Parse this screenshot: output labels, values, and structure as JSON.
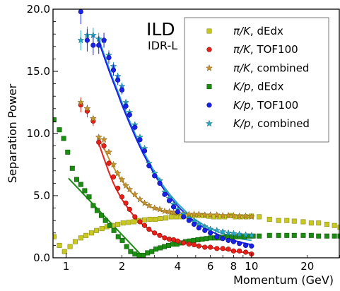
{
  "chart_data": {
    "type": "scatter",
    "title": "ILD",
    "subtitle": "IDR-L",
    "xlabel": "Momentum (GeV)",
    "ylabel": "Separation Power",
    "xscale": "log",
    "xlim": [
      0.85,
      30
    ],
    "ylim": [
      0,
      20
    ],
    "xticks": [
      1,
      2,
      4,
      6,
      8,
      10,
      20
    ],
    "yticks": [
      0,
      5,
      10,
      15,
      20
    ],
    "ytick_labels": [
      "0.0",
      "5.0",
      "10.0",
      "15.0",
      "20.0"
    ],
    "legend_position": "top-right",
    "series": [
      {
        "name": "π/K, dEdx",
        "legend_parts": [
          {
            "t": "π/K",
            "i": true
          },
          {
            "t": ", dEdx",
            "i": false
          }
        ],
        "marker": "square",
        "color": "#c8c81e",
        "edge": "#8a8a10",
        "x": [
          0.86,
          0.92,
          0.98,
          1.05,
          1.12,
          1.2,
          1.28,
          1.37,
          1.46,
          1.56,
          1.66,
          1.78,
          1.9,
          2.03,
          2.17,
          2.32,
          2.48,
          2.65,
          2.83,
          3.02,
          3.23,
          3.45,
          3.69,
          3.94,
          4.21,
          4.5,
          4.81,
          5.14,
          5.49,
          5.87,
          6.27,
          6.7,
          7.16,
          7.65,
          8.17,
          8.73,
          9.33,
          9.97,
          11,
          12.5,
          14,
          15.5,
          17,
          19,
          21,
          23,
          25.5,
          28,
          30
        ],
        "y": [
          1.7,
          1.0,
          0.5,
          0.9,
          1.3,
          1.6,
          1.8,
          2.0,
          2.2,
          2.35,
          2.5,
          2.6,
          2.7,
          2.8,
          2.85,
          2.9,
          3.0,
          3.05,
          3.1,
          3.1,
          3.15,
          3.2,
          3.3,
          3.3,
          3.3,
          3.35,
          3.4,
          3.4,
          3.4,
          3.35,
          3.3,
          3.3,
          3.3,
          3.4,
          3.3,
          3.3,
          3.3,
          3.35,
          3.3,
          3.1,
          3.0,
          3.0,
          2.95,
          2.9,
          2.8,
          2.8,
          2.7,
          2.6,
          2.45
        ]
      },
      {
        "name": "π/K, TOF100",
        "legend_parts": [
          {
            "t": "π/K",
            "i": true
          },
          {
            "t": ", TOF100",
            "i": false
          }
        ],
        "marker": "circle",
        "color": "#e8201a",
        "edge": "#8a1008",
        "x": [
          1.2,
          1.3,
          1.4,
          1.5,
          1.6,
          1.7,
          1.8,
          1.9,
          2.0,
          2.1,
          2.2,
          2.35,
          2.5,
          2.65,
          2.8,
          3.0,
          3.2,
          3.4,
          3.6,
          3.8,
          4.0,
          4.3,
          4.6,
          4.9,
          5.2,
          5.6,
          6.0,
          6.5,
          7.0,
          7.5,
          8.0,
          8.6,
          9.3,
          10.0
        ],
        "y": [
          12.3,
          11.8,
          11.0,
          9.3,
          9.0,
          7.6,
          6.5,
          5.6,
          4.9,
          4.4,
          3.9,
          3.3,
          2.9,
          2.6,
          2.3,
          2.0,
          1.8,
          1.6,
          1.5,
          1.45,
          1.35,
          1.2,
          1.1,
          1.05,
          0.95,
          0.85,
          0.85,
          0.75,
          0.75,
          0.7,
          0.55,
          0.55,
          0.45,
          0.3
        ],
        "yerr": [
          0.6,
          0.5,
          0.4,
          0.35,
          0.3,
          0.25,
          0.2,
          0.2,
          0.15,
          0.15,
          0.15,
          0.1,
          0.1,
          0.1,
          0.1,
          0.1,
          0.1,
          0.1,
          0.1,
          0.1,
          0.1,
          0.1,
          0.1,
          0.1,
          0.1,
          0.1,
          0.1,
          0.1,
          0.1,
          0.1,
          0.1,
          0.1,
          0.1,
          0.1
        ],
        "fit": {
          "x": [
            1.5,
            1.6,
            1.7,
            1.8,
            1.9,
            2.0,
            2.2,
            2.4,
            2.6,
            2.8,
            3.0,
            3.3,
            3.6,
            4.0,
            4.5,
            5.0,
            5.5,
            6.0,
            7.0,
            8.0,
            9.0,
            10.0
          ],
          "y": [
            9.2,
            8.0,
            6.9,
            6.0,
            5.3,
            4.7,
            3.8,
            3.1,
            2.65,
            2.3,
            2.0,
            1.7,
            1.5,
            1.3,
            1.12,
            1.0,
            0.9,
            0.82,
            0.68,
            0.55,
            0.45,
            0.37
          ]
        }
      },
      {
        "name": "π/K, combined",
        "legend_parts": [
          {
            "t": "π/K",
            "i": true
          },
          {
            "t": ", combined",
            "i": false
          }
        ],
        "marker": "star",
        "color": "#c8942e",
        "edge": "#7a5a14",
        "x": [
          1.2,
          1.3,
          1.4,
          1.5,
          1.6,
          1.7,
          1.8,
          1.9,
          2.0,
          2.1,
          2.2,
          2.35,
          2.5,
          2.65,
          2.8,
          3.0,
          3.2,
          3.4,
          3.6,
          3.8,
          4.0,
          4.3,
          4.6,
          4.9,
          5.2,
          5.6,
          6.0,
          6.5,
          7.0,
          7.5,
          8.0,
          8.6,
          9.3,
          10.0
        ],
        "y": [
          12.5,
          12.0,
          11.2,
          9.7,
          9.5,
          8.5,
          7.5,
          6.8,
          6.3,
          5.8,
          5.5,
          5.1,
          4.7,
          4.4,
          4.2,
          4.0,
          3.9,
          3.75,
          3.7,
          3.65,
          3.6,
          3.55,
          3.5,
          3.5,
          3.5,
          3.45,
          3.45,
          3.45,
          3.4,
          3.4,
          3.4,
          3.35,
          3.35,
          3.3
        ],
        "fit": {
          "x": [
            1.5,
            1.6,
            1.7,
            1.8,
            1.9,
            2.0,
            2.2,
            2.4,
            2.6,
            2.8,
            3.0,
            3.3,
            3.6,
            4.0,
            4.5,
            5.0,
            5.5,
            6.0,
            7.0,
            8.0,
            9.0,
            10.0
          ],
          "y": [
            9.6,
            8.8,
            8.0,
            7.3,
            6.7,
            6.2,
            5.4,
            4.85,
            4.45,
            4.15,
            3.95,
            3.75,
            3.6,
            3.5,
            3.42,
            3.38,
            3.35,
            3.33,
            3.3,
            3.28,
            3.26,
            3.25
          ]
        }
      },
      {
        "name": "K/p, dEdx",
        "legend_parts": [
          {
            "t": "K/p",
            "i": true
          },
          {
            "t": ", dEdx",
            "i": false
          }
        ],
        "marker": "square",
        "color": "#1c8c12",
        "edge": "#0e5a08",
        "x": [
          0.86,
          0.92,
          0.97,
          1.02,
          1.08,
          1.14,
          1.2,
          1.26,
          1.33,
          1.4,
          1.47,
          1.55,
          1.63,
          1.72,
          1.81,
          1.91,
          2.01,
          2.12,
          2.23,
          2.35,
          2.48,
          2.61,
          2.75,
          2.9,
          3.05,
          3.22,
          3.39,
          3.57,
          3.76,
          3.96,
          4.17,
          4.4,
          4.63,
          4.88,
          5.14,
          5.42,
          5.71,
          6.02,
          6.34,
          6.68,
          7.04,
          7.42,
          7.82,
          8.24,
          8.68,
          9.15,
          9.64,
          10.2,
          11,
          12.5,
          14,
          15.5,
          17,
          19,
          21,
          23,
          25.5,
          28,
          30
        ],
        "y": [
          11.1,
          10.3,
          9.6,
          8.5,
          7.2,
          6.3,
          5.9,
          5.4,
          4.9,
          4.2,
          3.8,
          3.4,
          3.0,
          2.6,
          2.2,
          1.7,
          1.4,
          0.9,
          0.5,
          0.3,
          0.2,
          0.2,
          0.4,
          0.5,
          0.7,
          0.8,
          0.9,
          1.0,
          1.1,
          1.1,
          1.2,
          1.3,
          1.35,
          1.4,
          1.45,
          1.5,
          1.55,
          1.6,
          1.6,
          1.6,
          1.65,
          1.7,
          1.7,
          1.7,
          1.7,
          1.7,
          1.75,
          1.75,
          1.75,
          1.8,
          1.8,
          1.8,
          1.8,
          1.8,
          1.8,
          1.75,
          1.75,
          1.75,
          1.75
        ],
        "fit": {
          "x": [
            1.03,
            2.55
          ],
          "y": [
            6.4,
            0.2
          ]
        }
      },
      {
        "name": "K/p, TOF100",
        "legend_parts": [
          {
            "t": "K/p",
            "i": true
          },
          {
            "t": ", TOF100",
            "i": false
          }
        ],
        "marker": "circle",
        "color": "#1a22e8",
        "edge": "#0a0e8a",
        "x": [
          1.2,
          1.3,
          1.4,
          1.5,
          1.6,
          1.7,
          1.8,
          1.9,
          2.0,
          2.1,
          2.2,
          2.35,
          2.5,
          2.65,
          2.8,
          3.0,
          3.2,
          3.4,
          3.6,
          3.8,
          4.0,
          4.3,
          4.6,
          4.9,
          5.2,
          5.6,
          6.0,
          6.5,
          7.0,
          7.5,
          8.0,
          8.6,
          9.3,
          10.0
        ],
        "y": [
          19.8,
          17.5,
          17.1,
          17.1,
          17.5,
          16.1,
          15.1,
          14.3,
          13.5,
          12.2,
          11.5,
          10.5,
          9.5,
          8.6,
          7.4,
          6.6,
          6.0,
          5.1,
          4.6,
          4.1,
          3.7,
          3.3,
          3.0,
          2.7,
          2.4,
          2.2,
          2.0,
          1.7,
          1.55,
          1.4,
          1.3,
          1.15,
          1.0,
          0.95
        ],
        "yerr": [
          1.0,
          0.9,
          0.8,
          0.7,
          0.6,
          0.5,
          0.45,
          0.4,
          0.35,
          0.3,
          0.25,
          0.25,
          0.2,
          0.2,
          0.2,
          0.15,
          0.15,
          0.15,
          0.15,
          0.1,
          0.1,
          0.1,
          0.1,
          0.1,
          0.1,
          0.1,
          0.1,
          0.1,
          0.1,
          0.1,
          0.1,
          0.1,
          0.1,
          0.1
        ],
        "fit": {
          "x": [
            1.5,
            1.6,
            1.7,
            1.8,
            1.9,
            2.0,
            2.2,
            2.4,
            2.6,
            2.8,
            3.0,
            3.3,
            3.6,
            4.0,
            4.5,
            5.0,
            5.5,
            6.0,
            7.0,
            8.0,
            9.0,
            10.0
          ],
          "y": [
            17.4,
            16.2,
            15.1,
            14.1,
            13.2,
            12.3,
            10.8,
            9.5,
            8.4,
            7.5,
            6.7,
            5.7,
            4.95,
            4.15,
            3.4,
            2.85,
            2.45,
            2.15,
            1.7,
            1.4,
            1.2,
            1.05
          ]
        }
      },
      {
        "name": "K/p, combined",
        "legend_parts": [
          {
            "t": "K/p",
            "i": true
          },
          {
            "t": ", combined",
            "i": false
          }
        ],
        "marker": "star",
        "color": "#2aa8c4",
        "edge": "#126a80",
        "x": [
          1.2,
          1.3,
          1.4,
          1.5,
          1.6,
          1.7,
          1.8,
          1.9,
          2.0,
          2.1,
          2.2,
          2.35,
          2.5,
          2.65,
          2.8,
          3.0,
          3.2,
          3.4,
          3.6,
          3.8,
          4.0,
          4.3,
          4.6,
          4.9,
          5.2,
          5.6,
          6.0,
          6.5,
          7.0,
          7.5,
          8.0,
          8.6,
          9.3,
          10.0
        ],
        "y": [
          17.5,
          17.9,
          17.9,
          17.6,
          17.5,
          16.3,
          15.4,
          14.6,
          13.8,
          12.5,
          11.7,
          10.7,
          9.7,
          8.8,
          7.6,
          6.8,
          6.2,
          5.3,
          4.8,
          4.3,
          3.9,
          3.5,
          3.2,
          2.9,
          2.7,
          2.5,
          2.3,
          2.2,
          2.1,
          2.0,
          1.95,
          1.9,
          1.85,
          1.8
        ],
        "yerr": [
          0.8,
          0.7,
          0.6,
          0.5,
          0.45,
          0.4,
          0.35,
          0.3,
          0.3,
          0.25,
          0.25,
          0.2,
          0.2,
          0.15,
          0.15,
          0.15,
          0.1,
          0.1,
          0.1,
          0.1,
          0.1,
          0.1,
          0.1,
          0.1,
          0.1,
          0.1,
          0.1,
          0.1,
          0.1,
          0.1,
          0.1,
          0.1,
          0.1,
          0.1
        ],
        "fit": {
          "x": [
            1.5,
            1.6,
            1.7,
            1.8,
            1.9,
            2.0,
            2.2,
            2.4,
            2.6,
            2.8,
            3.0,
            3.3,
            3.6,
            4.0,
            4.5,
            5.0,
            5.5,
            6.0,
            7.0,
            8.0,
            9.0,
            10.0
          ],
          "y": [
            17.6,
            16.4,
            15.3,
            14.3,
            13.4,
            12.5,
            11.0,
            9.7,
            8.6,
            7.7,
            6.9,
            5.9,
            5.15,
            4.35,
            3.6,
            3.05,
            2.65,
            2.35,
            1.95,
            1.7,
            1.5,
            1.4
          ]
        }
      }
    ]
  }
}
